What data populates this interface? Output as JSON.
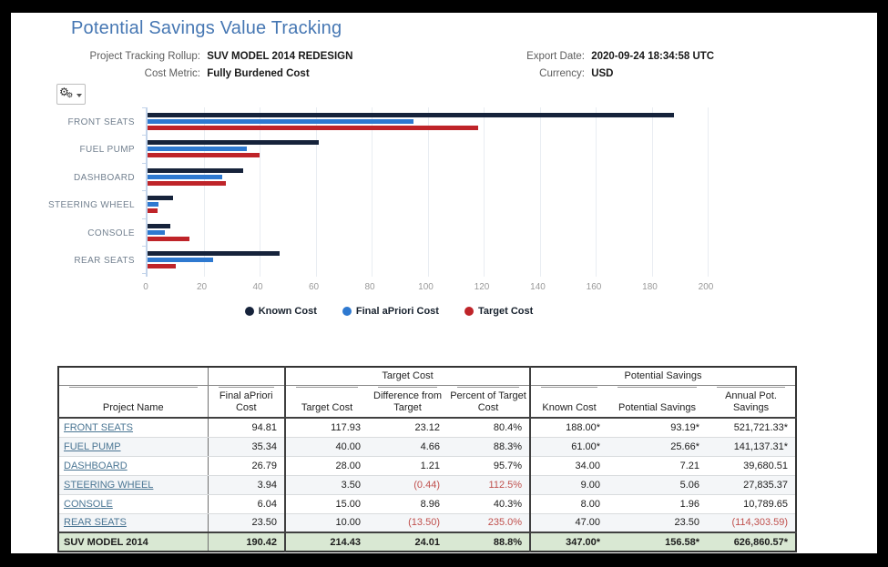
{
  "title": "Potential Savings Value Tracking",
  "info": {
    "left": [
      {
        "label": "Project Tracking Rollup:",
        "value": "SUV MODEL 2014 REDESIGN"
      },
      {
        "label": "Cost Metric:",
        "value": "Fully Burdened Cost"
      }
    ],
    "right": [
      {
        "label": "Export Date:",
        "value": "2020-09-24 18:34:58 UTC"
      },
      {
        "label": "Currency:",
        "value": "USD"
      }
    ]
  },
  "toolbar": {
    "settings_icon": "gear-icon"
  },
  "chart_data": {
    "type": "bar",
    "orientation": "horizontal",
    "title": "",
    "categories": [
      "FRONT SEATS",
      "FUEL PUMP",
      "DASHBOARD",
      "STEERING WHEEL",
      "CONSOLE",
      "REAR SEATS"
    ],
    "series": [
      {
        "name": "Known Cost",
        "color": "#16233b",
        "values": [
          188.0,
          61.0,
          34.0,
          9.0,
          8.0,
          47.0
        ]
      },
      {
        "name": "Final aPriori Cost",
        "color": "#2e79d0",
        "values": [
          94.81,
          35.34,
          26.79,
          3.94,
          6.04,
          23.5
        ]
      },
      {
        "name": "Target Cost",
        "color": "#bf2429",
        "values": [
          117.93,
          40.0,
          28.0,
          3.5,
          15.0,
          10.0
        ]
      }
    ],
    "xlim": [
      0,
      200
    ],
    "xticks": [
      0,
      20,
      40,
      60,
      80,
      100,
      120,
      140,
      160,
      180,
      200
    ],
    "grid": true,
    "legend_position": "bottom"
  },
  "table": {
    "group_headers": [
      {
        "label": "",
        "span": 1
      },
      {
        "label": "",
        "span": 1
      },
      {
        "label": "Target Cost",
        "span": 3
      },
      {
        "label": "Potential Savings",
        "span": 3
      }
    ],
    "columns": [
      "Project Name",
      "Final aPriori Cost",
      "Target Cost",
      "Difference from Target",
      "Percent of Target Cost",
      "Known Cost",
      "Potential Savings",
      "Annual Pot. Savings"
    ],
    "rows": [
      {
        "project": "FRONT SEATS",
        "values": [
          "94.81",
          "117.93",
          "23.12",
          "80.4%",
          "188.00*",
          "93.19*",
          "521,721.33*"
        ],
        "red": []
      },
      {
        "project": "FUEL PUMP",
        "values": [
          "35.34",
          "40.00",
          "4.66",
          "88.3%",
          "61.00*",
          "25.66*",
          "141,137.31*"
        ],
        "red": []
      },
      {
        "project": "DASHBOARD",
        "values": [
          "26.79",
          "28.00",
          "1.21",
          "95.7%",
          "34.00",
          "7.21",
          "39,680.51"
        ],
        "red": []
      },
      {
        "project": "STEERING WHEEL",
        "values": [
          "3.94",
          "3.50",
          "(0.44)",
          "112.5%",
          "9.00",
          "5.06",
          "27,835.37"
        ],
        "red": [
          2,
          3
        ]
      },
      {
        "project": "CONSOLE",
        "values": [
          "6.04",
          "15.00",
          "8.96",
          "40.3%",
          "8.00",
          "1.96",
          "10,789.65"
        ],
        "red": []
      },
      {
        "project": "REAR SEATS",
        "values": [
          "23.50",
          "10.00",
          "(13.50)",
          "235.0%",
          "47.00",
          "23.50",
          "(114,303.59)"
        ],
        "red": [
          2,
          3,
          6
        ]
      }
    ],
    "total_row": {
      "project": "SUV MODEL 2014",
      "values": [
        "190.42",
        "214.43",
        "24.01",
        "88.8%",
        "347.00*",
        "156.58*",
        "626,860.57*"
      ],
      "red": []
    }
  }
}
